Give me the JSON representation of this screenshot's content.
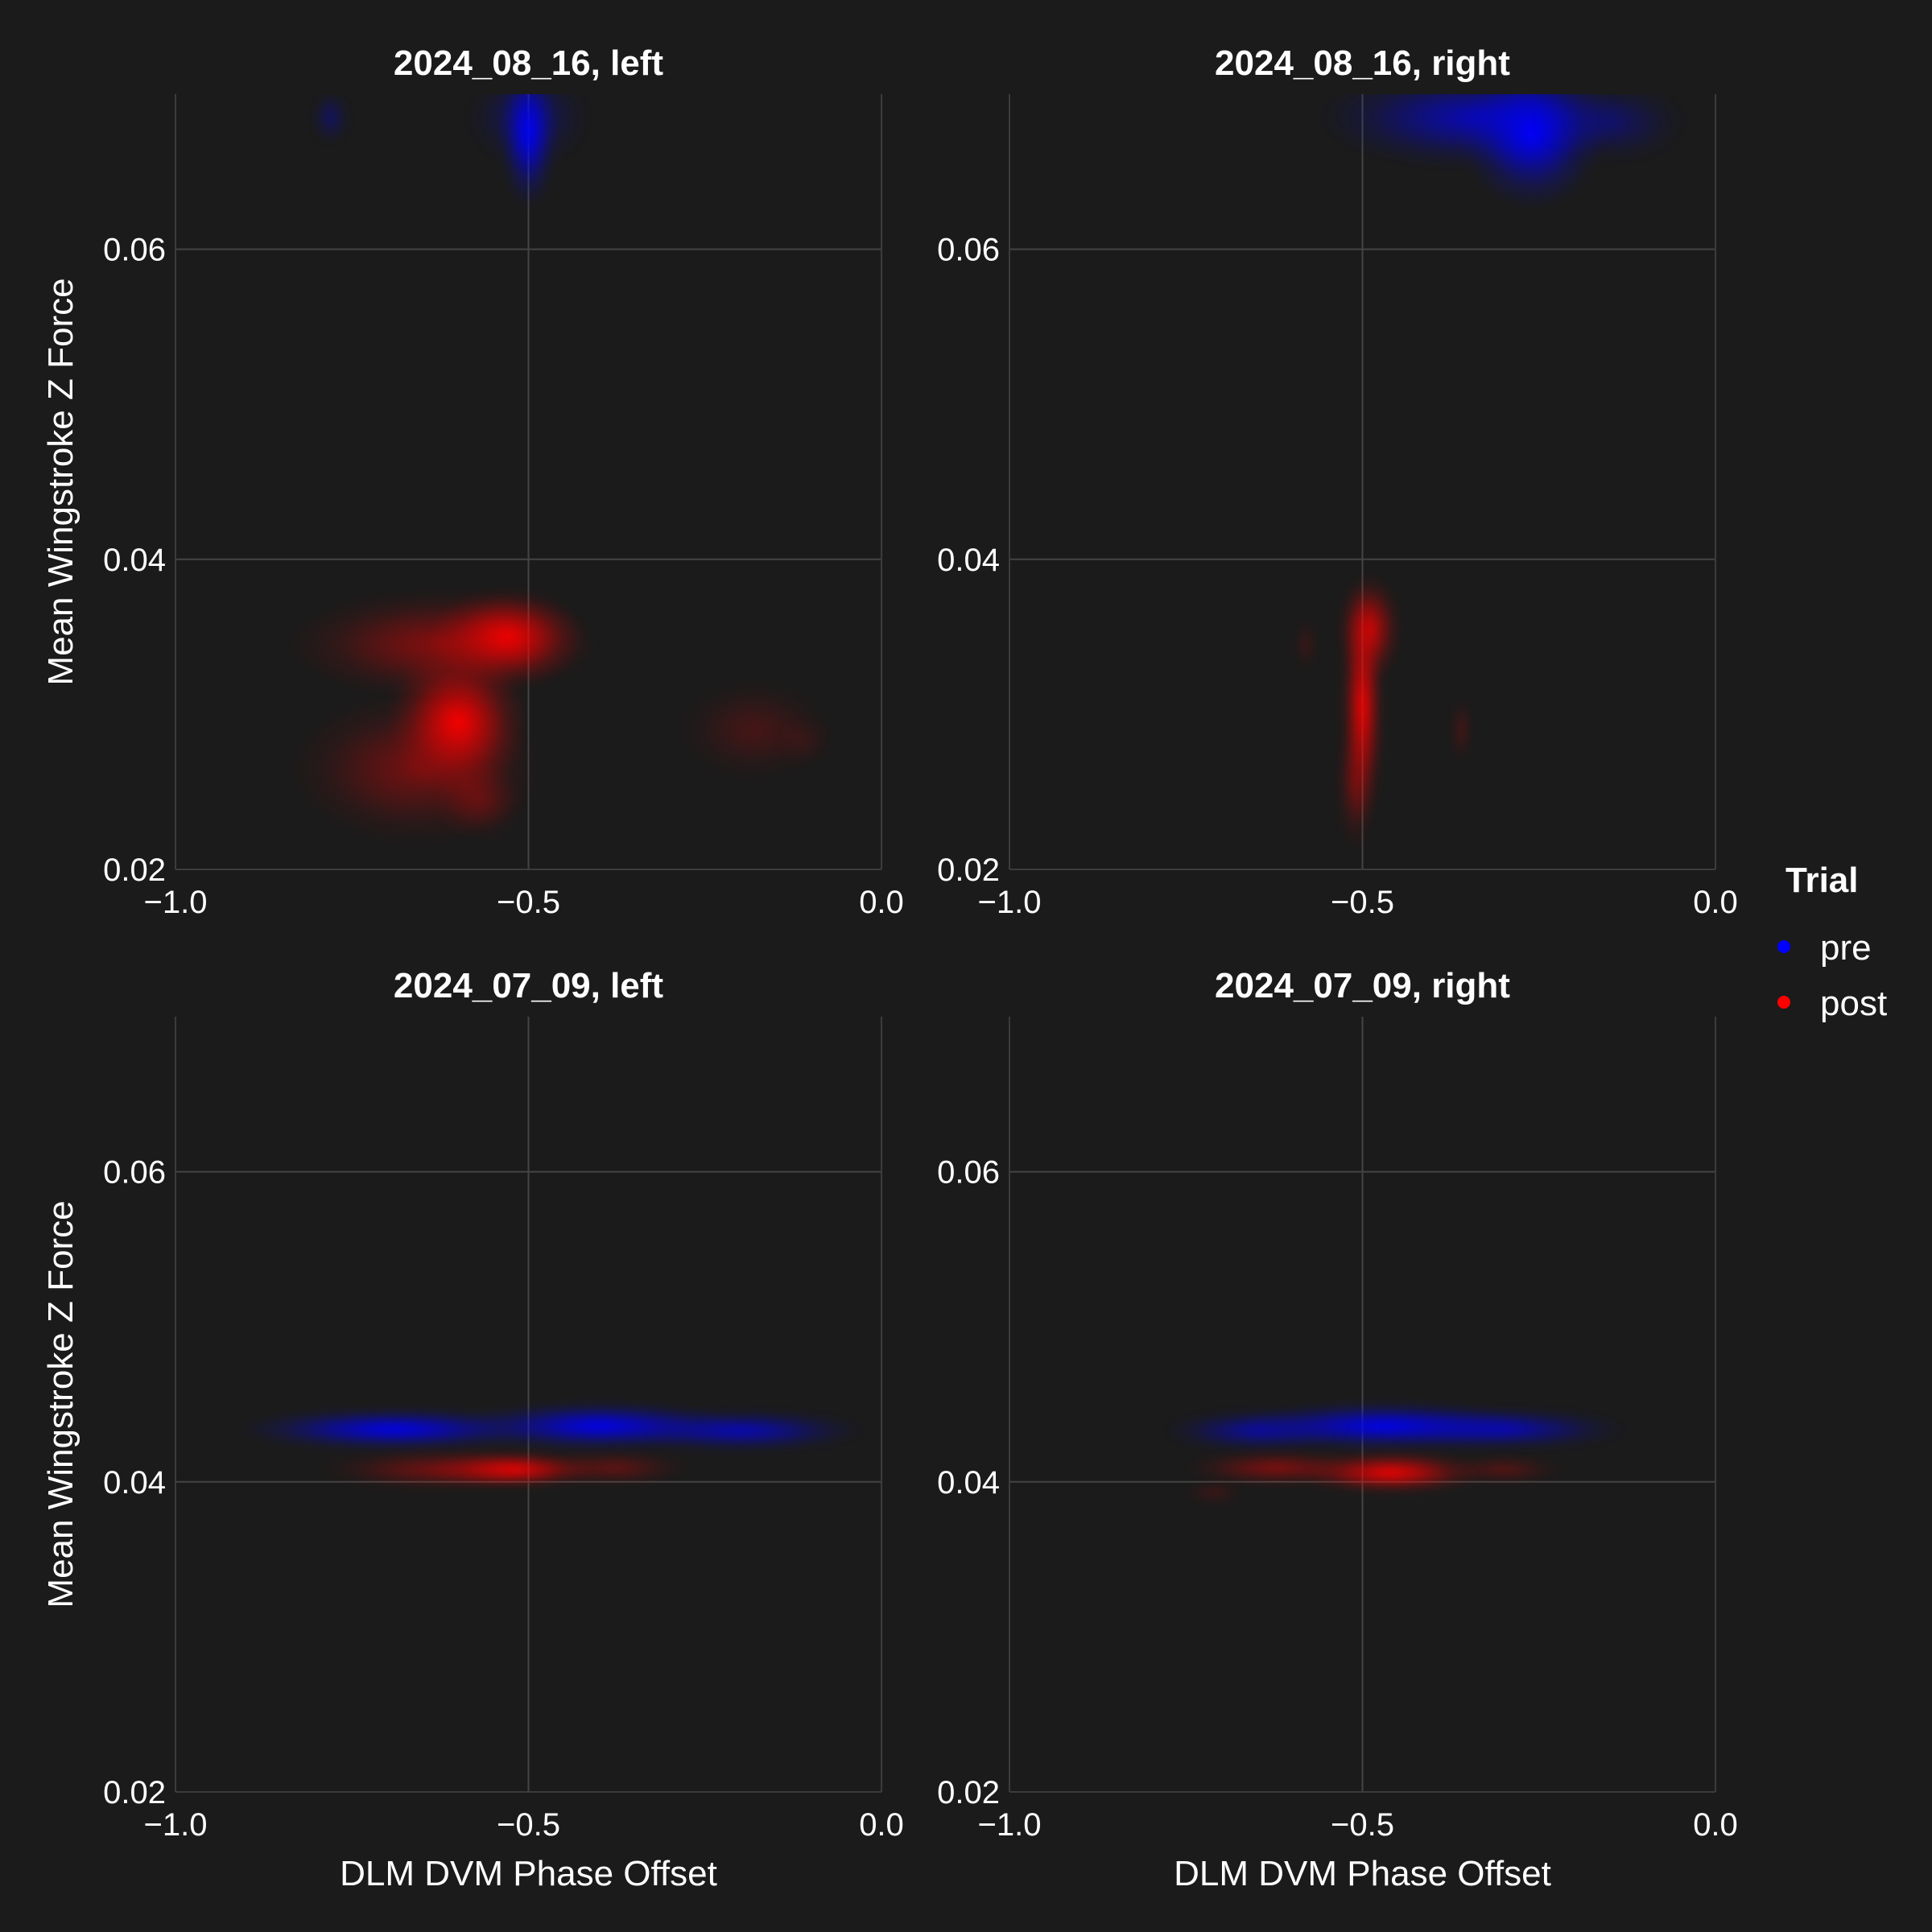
{
  "figure": {
    "background": "#1b1b1b",
    "legend": {
      "title": "Trial",
      "placement": "right",
      "entries": [
        {
          "label": "pre",
          "color": "#0000ff"
        },
        {
          "label": "post",
          "color": "#ff0000"
        }
      ]
    }
  },
  "chart_data": [
    {
      "type": "heatmap",
      "subtype": "2d-density",
      "title": "2024_08_16, left",
      "xlabel": "",
      "ylabel": "Mean Wingstroke Z Force",
      "xlim": [
        -1.0,
        0.0
      ],
      "ylim": [
        0.02,
        0.07
      ],
      "xticks": [
        "−1.0",
        "−0.5",
        "0.0"
      ],
      "yticks": [
        "0.02",
        "0.04",
        "0.06"
      ],
      "grid": true,
      "series": [
        {
          "name": "pre",
          "color": "#0000ff",
          "clusters": [
            {
              "x": -0.5,
              "y": 0.0675,
              "sx": 0.018,
              "sy": 0.0022,
              "w": 1.0
            },
            {
              "x": -0.5,
              "y": 0.0685,
              "sx": 0.04,
              "sy": 0.0015,
              "w": 0.35
            },
            {
              "x": -0.78,
              "y": 0.0685,
              "sx": 0.012,
              "sy": 0.0008,
              "w": 0.35
            }
          ]
        },
        {
          "name": "post",
          "color": "#ff0000",
          "clusters": [
            {
              "x": -0.6,
              "y": 0.0295,
              "sx": 0.045,
              "sy": 0.0022,
              "w": 1.0
            },
            {
              "x": -0.53,
              "y": 0.035,
              "sx": 0.05,
              "sy": 0.0014,
              "w": 0.95
            },
            {
              "x": -0.62,
              "y": 0.0345,
              "sx": 0.1,
              "sy": 0.0016,
              "w": 0.5
            },
            {
              "x": -0.66,
              "y": 0.0265,
              "sx": 0.08,
              "sy": 0.0022,
              "w": 0.4
            },
            {
              "x": -0.57,
              "y": 0.0245,
              "sx": 0.03,
              "sy": 0.0012,
              "w": 0.3
            },
            {
              "x": -0.18,
              "y": 0.029,
              "sx": 0.05,
              "sy": 0.0015,
              "w": 0.2
            },
            {
              "x": -0.11,
              "y": 0.0283,
              "sx": 0.02,
              "sy": 0.0008,
              "w": 0.1
            }
          ]
        }
      ]
    },
    {
      "type": "heatmap",
      "subtype": "2d-density",
      "title": "2024_08_16, right",
      "xlabel": "",
      "ylabel": "",
      "xlim": [
        -1.0,
        0.0
      ],
      "ylim": [
        0.02,
        0.07
      ],
      "xticks": [
        "−1.0",
        "−0.5",
        "0.0"
      ],
      "yticks": [
        "0.02",
        "0.04",
        "0.06"
      ],
      "grid": true,
      "series": [
        {
          "name": "pre",
          "color": "#0000ff",
          "clusters": [
            {
              "x": -0.26,
              "y": 0.0675,
              "sx": 0.045,
              "sy": 0.0022,
              "w": 1.0
            },
            {
              "x": -0.34,
              "y": 0.0685,
              "sx": 0.1,
              "sy": 0.0015,
              "w": 0.7
            },
            {
              "x": -0.15,
              "y": 0.0682,
              "sx": 0.05,
              "sy": 0.0012,
              "w": 0.35
            }
          ]
        },
        {
          "name": "post",
          "color": "#ff0000",
          "clusters": [
            {
              "x": -0.5,
              "y": 0.0305,
              "sx": 0.013,
              "sy": 0.0035,
              "w": 1.0
            },
            {
              "x": -0.49,
              "y": 0.0355,
              "sx": 0.02,
              "sy": 0.0016,
              "w": 0.8
            },
            {
              "x": -0.51,
              "y": 0.0255,
              "sx": 0.012,
              "sy": 0.002,
              "w": 0.35
            },
            {
              "x": -0.36,
              "y": 0.029,
              "sx": 0.006,
              "sy": 0.001,
              "w": 0.25
            },
            {
              "x": -0.58,
              "y": 0.0345,
              "sx": 0.006,
              "sy": 0.0008,
              "w": 0.2
            }
          ]
        }
      ]
    },
    {
      "type": "heatmap",
      "subtype": "2d-density",
      "title": "2024_07_09, left",
      "xlabel": "DLM DVM Phase Offset",
      "ylabel": "Mean Wingstroke Z Force",
      "xlim": [
        -1.0,
        0.0
      ],
      "ylim": [
        0.02,
        0.07
      ],
      "xticks": [
        "−1.0",
        "−0.5",
        "0.0"
      ],
      "yticks": [
        "0.02",
        "0.04",
        "0.06"
      ],
      "grid": true,
      "series": [
        {
          "name": "pre",
          "color": "#0000ff",
          "clusters": [
            {
              "x": -0.69,
              "y": 0.0434,
              "sx": 0.1,
              "sy": 0.0006,
              "w": 1.0
            },
            {
              "x": -0.4,
              "y": 0.0436,
              "sx": 0.09,
              "sy": 0.0007,
              "w": 1.0
            },
            {
              "x": -0.2,
              "y": 0.0433,
              "sx": 0.08,
              "sy": 0.0006,
              "w": 0.75
            }
          ]
        },
        {
          "name": "post",
          "color": "#ff0000",
          "clusters": [
            {
              "x": -0.52,
              "y": 0.0408,
              "sx": 0.055,
              "sy": 0.0005,
              "w": 1.0
            },
            {
              "x": -0.62,
              "y": 0.0408,
              "sx": 0.08,
              "sy": 0.0006,
              "w": 0.45
            },
            {
              "x": -0.38,
              "y": 0.0409,
              "sx": 0.05,
              "sy": 0.0005,
              "w": 0.35
            }
          ]
        }
      ]
    },
    {
      "type": "heatmap",
      "subtype": "2d-density",
      "title": "2024_07_09, right",
      "xlabel": "DLM DVM Phase Offset",
      "ylabel": "",
      "xlim": [
        -1.0,
        0.0
      ],
      "ylim": [
        0.02,
        0.07
      ],
      "xticks": [
        "−1.0",
        "−0.5",
        "0.0"
      ],
      "yticks": [
        "0.02",
        "0.04",
        "0.06"
      ],
      "grid": true,
      "series": [
        {
          "name": "pre",
          "color": "#0000ff",
          "clusters": [
            {
              "x": -0.47,
              "y": 0.0436,
              "sx": 0.1,
              "sy": 0.0007,
              "w": 1.0
            },
            {
              "x": -0.3,
              "y": 0.0434,
              "sx": 0.08,
              "sy": 0.0006,
              "w": 0.7
            },
            {
              "x": -0.65,
              "y": 0.0433,
              "sx": 0.06,
              "sy": 0.0006,
              "w": 0.6
            }
          ]
        },
        {
          "name": "post",
          "color": "#ff0000",
          "clusters": [
            {
              "x": -0.46,
              "y": 0.0406,
              "sx": 0.06,
              "sy": 0.0006,
              "w": 1.0
            },
            {
              "x": -0.62,
              "y": 0.0409,
              "sx": 0.06,
              "sy": 0.0005,
              "w": 0.5
            },
            {
              "x": -0.3,
              "y": 0.0408,
              "sx": 0.04,
              "sy": 0.0004,
              "w": 0.3
            },
            {
              "x": -0.71,
              "y": 0.0393,
              "sx": 0.02,
              "sy": 0.0003,
              "w": 0.2
            }
          ]
        }
      ]
    }
  ]
}
